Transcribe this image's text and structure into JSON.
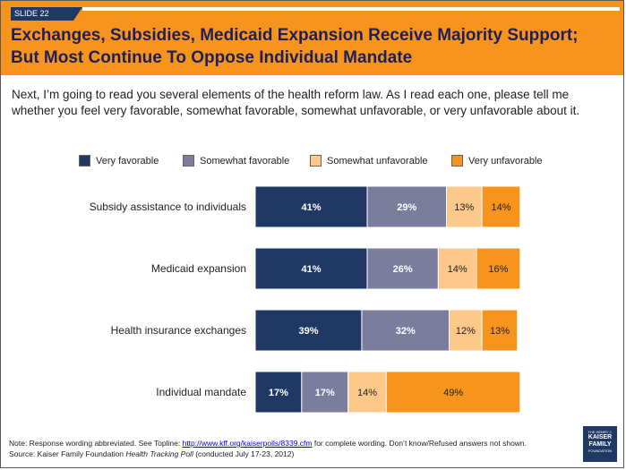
{
  "slide": {
    "tag": "SLIDE 22",
    "title": "Exchanges, Subsidies, Medicaid Expansion Receive Majority Support; But Most Continue To Oppose Individual Mandate",
    "intro": "Next, I’m going to read you several elements of the health reform law. As I read each one, please tell me whether you feel very favorable, somewhat favorable, somewhat unfavorable, or very unfavorable about it."
  },
  "colors": {
    "header": "#f7941d",
    "title_text": "#1f1f5a",
    "very_favorable": "#1f3864",
    "somewhat_favorable": "#7a7e9c",
    "somewhat_unfavorable": "#fcc98a",
    "very_unfavorable": "#f7941d"
  },
  "chart_data": {
    "type": "bar",
    "orientation": "horizontal",
    "stacked": true,
    "categories": [
      "Subsidy assistance to individuals",
      "Medicaid expansion",
      "Health insurance exchanges",
      "Individual mandate"
    ],
    "series": [
      {
        "name": "Very favorable",
        "values": [
          41,
          41,
          39,
          17
        ]
      },
      {
        "name": "Somewhat favorable",
        "values": [
          29,
          26,
          32,
          17
        ]
      },
      {
        "name": "Somewhat unfavorable",
        "values": [
          13,
          14,
          12,
          14
        ]
      },
      {
        "name": "Very unfavorable",
        "values": [
          14,
          16,
          13,
          49
        ]
      }
    ],
    "value_suffix": "%",
    "legend_position": "top",
    "grid": false
  },
  "footer": {
    "note_prefix": "Note: Response wording abbreviated. See Topline: ",
    "note_link": "http://www.kff.org/kaiserpolls/8339.cfm",
    "note_suffix": " for complete wording. Don’t know/Refused answers not shown.",
    "source_prefix": "Source: Kaiser Family Foundation ",
    "source_italic": "Health Tracking Poll",
    "source_suffix": " (conducted July 17-23, 2012)"
  },
  "logo": {
    "line1": "THE HENRY J.",
    "line2": "KAISER",
    "line3": "FAMILY",
    "line4": "FOUNDATION"
  }
}
